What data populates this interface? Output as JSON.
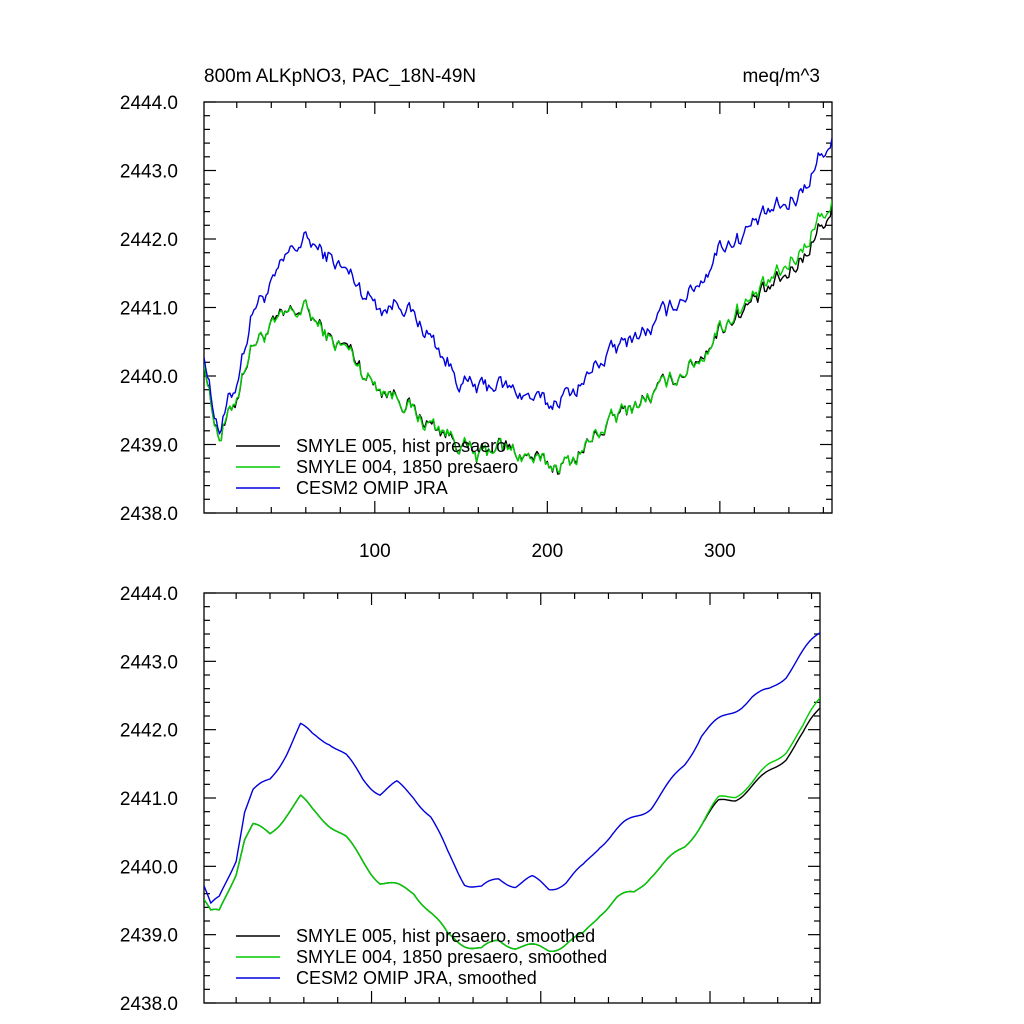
{
  "chart_data": [
    {
      "type": "line",
      "title_left": "800m ALKpNO3, PAC_18N-49N",
      "title_right": "meq/m^3",
      "xlabel": "",
      "ylabel": "",
      "xlim": [
        1,
        365
      ],
      "ylim": [
        2438.0,
        2444.0
      ],
      "yticks": [
        "2438.0",
        "2439.0",
        "2440.0",
        "2441.0",
        "2442.0",
        "2443.0",
        "2444.0"
      ],
      "xticks": [
        "100",
        "200",
        "300"
      ],
      "legend_position": "bottom-left",
      "series": [
        {
          "name": "SMYLE 005, hist presaero",
          "color": "#000000",
          "keypoints": [
            [
              1,
              2440.3
            ],
            [
              5,
              2439.6
            ],
            [
              8,
              2439.3
            ],
            [
              10,
              2439.1
            ],
            [
              15,
              2439.4
            ],
            [
              20,
              2439.7
            ],
            [
              25,
              2440.2
            ],
            [
              30,
              2440.5
            ],
            [
              40,
              2440.7
            ],
            [
              50,
              2440.9
            ],
            [
              60,
              2441.0
            ],
            [
              65,
              2440.8
            ],
            [
              75,
              2440.5
            ],
            [
              85,
              2440.4
            ],
            [
              95,
              2440.0
            ],
            [
              105,
              2439.8
            ],
            [
              115,
              2439.7
            ],
            [
              125,
              2439.4
            ],
            [
              140,
              2439.2
            ],
            [
              150,
              2439.0
            ],
            [
              160,
              2438.8
            ],
            [
              170,
              2439.0
            ],
            [
              180,
              2438.9
            ],
            [
              190,
              2438.8
            ],
            [
              200,
              2438.7
            ],
            [
              210,
              2438.7
            ],
            [
              220,
              2438.9
            ],
            [
              230,
              2439.2
            ],
            [
              245,
              2439.5
            ],
            [
              260,
              2439.7
            ],
            [
              275,
              2440.0
            ],
            [
              290,
              2440.3
            ],
            [
              300,
              2440.7
            ],
            [
              310,
              2440.9
            ],
            [
              320,
              2441.1
            ],
            [
              330,
              2441.3
            ],
            [
              340,
              2441.5
            ],
            [
              350,
              2441.8
            ],
            [
              358,
              2442.2
            ],
            [
              365,
              2442.4
            ]
          ]
        },
        {
          "name": "SMYLE 004, 1850 presaero",
          "color": "#00cc00",
          "keypoints": [
            [
              1,
              2440.3
            ],
            [
              5,
              2439.6
            ],
            [
              8,
              2439.3
            ],
            [
              10,
              2439.1
            ],
            [
              15,
              2439.4
            ],
            [
              20,
              2439.7
            ],
            [
              25,
              2440.2
            ],
            [
              30,
              2440.5
            ],
            [
              40,
              2440.7
            ],
            [
              50,
              2440.9
            ],
            [
              60,
              2441.0
            ],
            [
              65,
              2440.8
            ],
            [
              75,
              2440.5
            ],
            [
              85,
              2440.4
            ],
            [
              95,
              2440.0
            ],
            [
              105,
              2439.8
            ],
            [
              115,
              2439.7
            ],
            [
              125,
              2439.4
            ],
            [
              140,
              2439.2
            ],
            [
              150,
              2439.0
            ],
            [
              160,
              2438.8
            ],
            [
              170,
              2439.0
            ],
            [
              180,
              2438.9
            ],
            [
              190,
              2438.8
            ],
            [
              200,
              2438.7
            ],
            [
              210,
              2438.7
            ],
            [
              220,
              2438.9
            ],
            [
              230,
              2439.2
            ],
            [
              245,
              2439.5
            ],
            [
              260,
              2439.7
            ],
            [
              275,
              2440.0
            ],
            [
              290,
              2440.3
            ],
            [
              300,
              2440.7
            ],
            [
              310,
              2440.95
            ],
            [
              320,
              2441.15
            ],
            [
              330,
              2441.4
            ],
            [
              340,
              2441.6
            ],
            [
              350,
              2441.95
            ],
            [
              358,
              2442.35
            ],
            [
              365,
              2442.5
            ]
          ]
        },
        {
          "name": "CESM2 OMIP JRA",
          "color": "#0000dd",
          "keypoints": [
            [
              1,
              2440.4
            ],
            [
              5,
              2439.7
            ],
            [
              8,
              2439.4
            ],
            [
              10,
              2439.2
            ],
            [
              15,
              2439.6
            ],
            [
              20,
              2439.9
            ],
            [
              25,
              2440.5
            ],
            [
              30,
              2441.0
            ],
            [
              40,
              2441.3
            ],
            [
              50,
              2441.8
            ],
            [
              60,
              2442.0
            ],
            [
              65,
              2441.9
            ],
            [
              75,
              2441.7
            ],
            [
              85,
              2441.5
            ],
            [
              95,
              2441.2
            ],
            [
              105,
              2441.0
            ],
            [
              115,
              2441.1
            ],
            [
              125,
              2440.8
            ],
            [
              140,
              2440.3
            ],
            [
              150,
              2439.9
            ],
            [
              160,
              2439.8
            ],
            [
              170,
              2439.9
            ],
            [
              180,
              2439.8
            ],
            [
              190,
              2439.7
            ],
            [
              200,
              2439.6
            ],
            [
              210,
              2439.7
            ],
            [
              220,
              2439.9
            ],
            [
              230,
              2440.2
            ],
            [
              245,
              2440.5
            ],
            [
              260,
              2440.7
            ],
            [
              275,
              2441.1
            ],
            [
              290,
              2441.4
            ],
            [
              300,
              2441.9
            ],
            [
              310,
              2442.0
            ],
            [
              320,
              2442.2
            ],
            [
              330,
              2442.4
            ],
            [
              340,
              2442.5
            ],
            [
              350,
              2442.8
            ],
            [
              358,
              2443.2
            ],
            [
              365,
              2443.4
            ]
          ]
        }
      ]
    },
    {
      "type": "line",
      "xlabel": "",
      "ylabel": "",
      "xlim": [
        1,
        365
      ],
      "ylim": [
        2438.0,
        2444.0
      ],
      "yticks": [
        "2438.0",
        "2439.0",
        "2440.0",
        "2441.0",
        "2442.0",
        "2443.0",
        "2444.0"
      ],
      "legend_position": "bottom-left",
      "series": [
        {
          "name": "SMYLE 005, hist presaero, smoothed",
          "color": "#000000",
          "keypoints": [
            [
              1,
              2439.5
            ],
            [
              5,
              2439.3
            ],
            [
              10,
              2439.3
            ],
            [
              15,
              2439.6
            ],
            [
              20,
              2439.9
            ],
            [
              25,
              2440.4
            ],
            [
              30,
              2440.6
            ],
            [
              40,
              2440.5
            ],
            [
              50,
              2440.8
            ],
            [
              58,
              2441.0
            ],
            [
              65,
              2440.8
            ],
            [
              75,
              2440.6
            ],
            [
              85,
              2440.4
            ],
            [
              95,
              2440.1
            ],
            [
              105,
              2439.8
            ],
            [
              115,
              2439.7
            ],
            [
              125,
              2439.6
            ],
            [
              135,
              2439.3
            ],
            [
              145,
              2439.0
            ],
            [
              155,
              2438.9
            ],
            [
              165,
              2438.8
            ],
            [
              175,
              2438.9
            ],
            [
              185,
              2438.8
            ],
            [
              195,
              2438.8
            ],
            [
              205,
              2438.8
            ],
            [
              215,
              2438.9
            ],
            [
              225,
              2439.0
            ],
            [
              235,
              2439.3
            ],
            [
              245,
              2439.5
            ],
            [
              255,
              2439.6
            ],
            [
              265,
              2439.9
            ],
            [
              275,
              2440.1
            ],
            [
              285,
              2440.3
            ],
            [
              295,
              2440.6
            ],
            [
              305,
              2440.9
            ],
            [
              315,
              2441.0
            ],
            [
              325,
              2441.2
            ],
            [
              335,
              2441.4
            ],
            [
              345,
              2441.6
            ],
            [
              355,
              2441.9
            ],
            [
              365,
              2442.3
            ]
          ]
        },
        {
          "name": "SMYLE 004, 1850 presaero, smoothed",
          "color": "#00cc00",
          "keypoints": [
            [
              1,
              2439.5
            ],
            [
              5,
              2439.3
            ],
            [
              10,
              2439.3
            ],
            [
              15,
              2439.6
            ],
            [
              20,
              2439.9
            ],
            [
              25,
              2440.4
            ],
            [
              30,
              2440.6
            ],
            [
              40,
              2440.5
            ],
            [
              50,
              2440.8
            ],
            [
              58,
              2441.0
            ],
            [
              65,
              2440.8
            ],
            [
              75,
              2440.6
            ],
            [
              85,
              2440.4
            ],
            [
              95,
              2440.1
            ],
            [
              105,
              2439.8
            ],
            [
              115,
              2439.7
            ],
            [
              125,
              2439.6
            ],
            [
              135,
              2439.3
            ],
            [
              145,
              2439.0
            ],
            [
              155,
              2438.9
            ],
            [
              165,
              2438.8
            ],
            [
              175,
              2438.9
            ],
            [
              185,
              2438.8
            ],
            [
              195,
              2438.8
            ],
            [
              205,
              2438.8
            ],
            [
              215,
              2438.9
            ],
            [
              225,
              2439.0
            ],
            [
              235,
              2439.3
            ],
            [
              245,
              2439.5
            ],
            [
              255,
              2439.6
            ],
            [
              265,
              2439.9
            ],
            [
              275,
              2440.1
            ],
            [
              285,
              2440.3
            ],
            [
              295,
              2440.6
            ],
            [
              305,
              2440.95
            ],
            [
              315,
              2441.05
            ],
            [
              325,
              2441.25
            ],
            [
              335,
              2441.5
            ],
            [
              345,
              2441.7
            ],
            [
              355,
              2442.0
            ],
            [
              365,
              2442.45
            ]
          ]
        },
        {
          "name": "CESM2 OMIP JRA, smoothed",
          "color": "#0000dd",
          "keypoints": [
            [
              1,
              2439.7
            ],
            [
              5,
              2439.4
            ],
            [
              10,
              2439.5
            ],
            [
              15,
              2439.8
            ],
            [
              20,
              2440.1
            ],
            [
              25,
              2440.8
            ],
            [
              30,
              2441.1
            ],
            [
              40,
              2441.3
            ],
            [
              50,
              2441.7
            ],
            [
              58,
              2442.05
            ],
            [
              65,
              2441.9
            ],
            [
              75,
              2441.8
            ],
            [
              85,
              2441.6
            ],
            [
              95,
              2441.3
            ],
            [
              105,
              2441.1
            ],
            [
              115,
              2441.2
            ],
            [
              125,
              2441.0
            ],
            [
              135,
              2440.7
            ],
            [
              145,
              2440.2
            ],
            [
              155,
              2439.8
            ],
            [
              165,
              2439.7
            ],
            [
              175,
              2439.8
            ],
            [
              185,
              2439.7
            ],
            [
              195,
              2439.8
            ],
            [
              205,
              2439.7
            ],
            [
              215,
              2439.8
            ],
            [
              225,
              2440.0
            ],
            [
              235,
              2440.3
            ],
            [
              245,
              2440.5
            ],
            [
              255,
              2440.7
            ],
            [
              265,
              2440.9
            ],
            [
              275,
              2441.2
            ],
            [
              285,
              2441.5
            ],
            [
              295,
              2441.9
            ],
            [
              305,
              2442.1
            ],
            [
              315,
              2442.3
            ],
            [
              325,
              2442.5
            ],
            [
              335,
              2442.6
            ],
            [
              345,
              2442.8
            ],
            [
              355,
              2443.1
            ],
            [
              365,
              2443.4
            ]
          ]
        }
      ]
    }
  ]
}
